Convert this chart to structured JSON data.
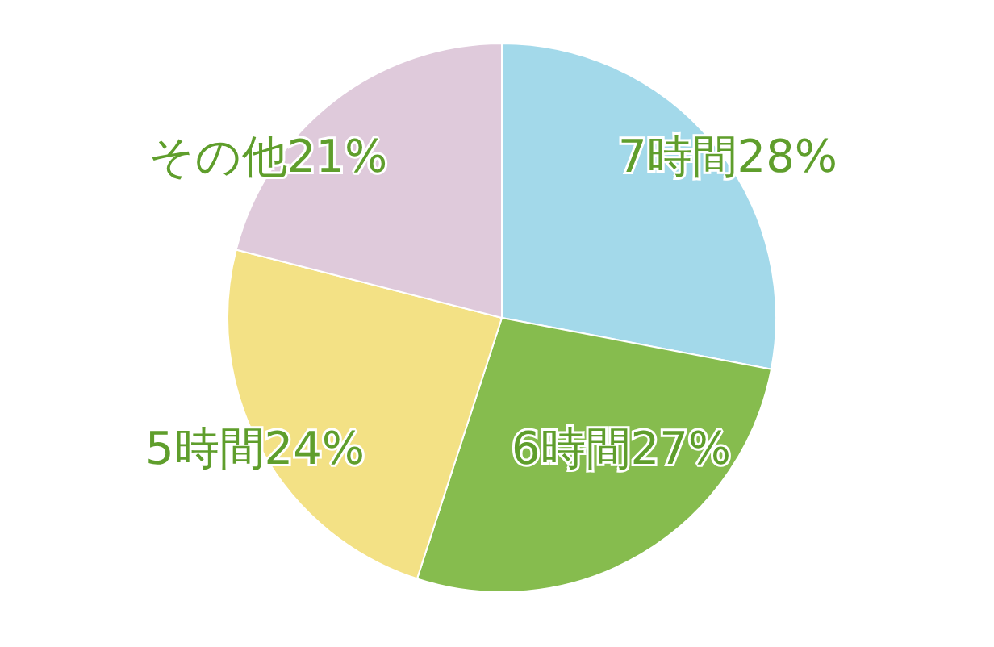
{
  "chart_data": {
    "type": "pie",
    "categories": [
      "7時間",
      "6時間",
      "5時間",
      "その他"
    ],
    "values": [
      28,
      27,
      24,
      21
    ],
    "value_labels": [
      "28%",
      "27%",
      "24%",
      "21%"
    ],
    "colors": [
      "#a3d9ea",
      "#86bc4e",
      "#f3e185",
      "#dfcadb"
    ],
    "legend": false
  }
}
